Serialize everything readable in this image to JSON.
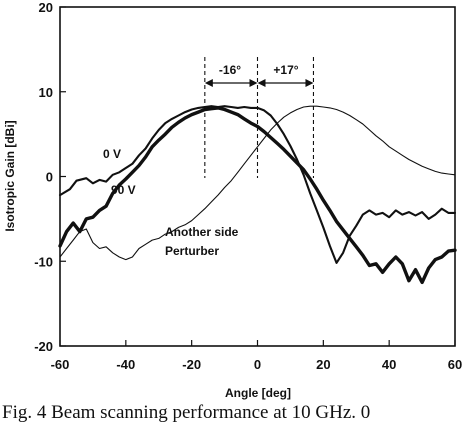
{
  "caption": "Fig. 4 Beam scanning performance at 10 GHz. 0",
  "chart_data": {
    "type": "line",
    "title": "",
    "xlabel": "Angle [deg]",
    "ylabel": "Isotropic Gain [dBi]",
    "xlim": [
      -60,
      60
    ],
    "ylim": [
      -20,
      20
    ],
    "xticks": [
      -60,
      -40,
      -20,
      0,
      20,
      40,
      60
    ],
    "yticks": [
      -20,
      -10,
      0,
      10,
      20
    ],
    "grid": false,
    "legend": "none",
    "series": [
      {
        "name": "0 V",
        "style": "medium",
        "x": [
          -60,
          -57,
          -55,
          -52,
          -50,
          -48,
          -46,
          -44,
          -42,
          -40,
          -38,
          -36,
          -34,
          -32,
          -30,
          -28,
          -26,
          -24,
          -22,
          -20,
          -18,
          -16,
          -14,
          -12,
          -10,
          -8,
          -6,
          -4,
          -2,
          0,
          2,
          4,
          6,
          8,
          10,
          12,
          14,
          16,
          18,
          20,
          22,
          24,
          26,
          28,
          30,
          32,
          34,
          36,
          38,
          40,
          42,
          44,
          46,
          48,
          50,
          52,
          54,
          56,
          58,
          60
        ],
        "values": [
          -2.2,
          -1.5,
          -0.5,
          -0.2,
          -0.8,
          -0.4,
          -0.6,
          0.2,
          0.5,
          1.0,
          1.5,
          2.5,
          3.3,
          4.5,
          5.5,
          6.3,
          6.8,
          7.2,
          7.6,
          7.9,
          8.1,
          8.2,
          8.3,
          8.2,
          8.3,
          8.2,
          8.1,
          8.2,
          8.1,
          8.1,
          7.8,
          7.2,
          6.2,
          5.0,
          3.6,
          2.0,
          0.2,
          -2.0,
          -4.0,
          -6.0,
          -8.2,
          -10.2,
          -9.0,
          -7.0,
          -5.8,
          -4.5,
          -4.0,
          -4.5,
          -4.3,
          -4.8,
          -4.0,
          -4.5,
          -4.2,
          -4.6,
          -4.2,
          -5.0,
          -4.5,
          -3.8,
          -4.3,
          -4.3
        ]
      },
      {
        "name": "90 V",
        "style": "thick",
        "x": [
          -60,
          -58,
          -56,
          -54,
          -52,
          -50,
          -48,
          -46,
          -44,
          -42,
          -40,
          -38,
          -36,
          -34,
          -32,
          -30,
          -28,
          -26,
          -24,
          -22,
          -20,
          -18,
          -16,
          -14,
          -12,
          -10,
          -8,
          -6,
          -4,
          -2,
          0,
          2,
          4,
          6,
          8,
          10,
          12,
          14,
          16,
          18,
          20,
          22,
          24,
          26,
          28,
          30,
          32,
          34,
          36,
          38,
          40,
          42,
          44,
          46,
          48,
          50,
          52,
          54,
          56,
          58,
          60
        ],
        "values": [
          -8.2,
          -6.5,
          -5.5,
          -6.5,
          -5.0,
          -4.8,
          -4.0,
          -3.5,
          -2.0,
          -1.0,
          -0.3,
          0.5,
          1.3,
          2.3,
          3.5,
          4.3,
          5.0,
          5.8,
          6.4,
          6.9,
          7.3,
          7.6,
          7.9,
          8.0,
          8.1,
          7.9,
          7.6,
          7.3,
          6.8,
          6.3,
          5.9,
          5.3,
          4.6,
          3.9,
          3.2,
          2.4,
          1.6,
          0.8,
          -0.3,
          -1.5,
          -2.8,
          -4.0,
          -5.3,
          -6.3,
          -7.3,
          -8.3,
          -9.3,
          -10.5,
          -10.3,
          -11.3,
          -10.3,
          -9.5,
          -10.3,
          -12.3,
          -11.0,
          -12.5,
          -10.8,
          -9.8,
          -9.5,
          -8.8,
          -8.7
        ]
      },
      {
        "name": "Another side Perturber",
        "style": "thin",
        "x": [
          -60,
          -58,
          -56,
          -54,
          -52,
          -50,
          -48,
          -46,
          -44,
          -42,
          -40,
          -38,
          -36,
          -34,
          -32,
          -30,
          -28,
          -26,
          -24,
          -22,
          -20,
          -18,
          -16,
          -14,
          -12,
          -10,
          -8,
          -6,
          -4,
          -2,
          0,
          2,
          4,
          6,
          8,
          10,
          12,
          14,
          16,
          18,
          20,
          22,
          24,
          26,
          28,
          30,
          32,
          34,
          36,
          38,
          40,
          42,
          44,
          46,
          48,
          50,
          52,
          54,
          56,
          58,
          60
        ],
        "values": [
          -9.5,
          -8.5,
          -7.5,
          -6.5,
          -6.2,
          -7.8,
          -8.5,
          -8.3,
          -9.0,
          -9.5,
          -9.8,
          -9.5,
          -8.5,
          -8.0,
          -7.5,
          -7.3,
          -6.8,
          -6.5,
          -6.0,
          -5.7,
          -5.2,
          -4.5,
          -3.8,
          -3.0,
          -2.2,
          -1.3,
          -0.5,
          0.5,
          1.5,
          2.5,
          3.5,
          4.5,
          5.5,
          6.3,
          7.0,
          7.5,
          7.9,
          8.2,
          8.3,
          8.3,
          8.2,
          8.1,
          7.9,
          7.6,
          7.2,
          6.7,
          6.2,
          5.5,
          4.8,
          4.2,
          3.5,
          3.0,
          2.5,
          2.0,
          1.6,
          1.2,
          0.9,
          0.6,
          0.4,
          0.3,
          0.2
        ]
      }
    ],
    "annotations": [
      {
        "id": "lbl_0v",
        "text": "0 V"
      },
      {
        "id": "lbl_90v",
        "text": "90 V"
      },
      {
        "id": "lbl_another",
        "text": "Another side"
      },
      {
        "id": "lbl_perturber",
        "text": "Perturber"
      },
      {
        "id": "lbl_minus16",
        "text": "-16°"
      },
      {
        "id": "lbl_plus17",
        "text": "+17°"
      }
    ],
    "markers": {
      "dashed_x": [
        -16,
        0,
        17
      ],
      "minus_arrow_x": [
        -16,
        0
      ],
      "plus_arrow_x": [
        0,
        17
      ]
    }
  }
}
